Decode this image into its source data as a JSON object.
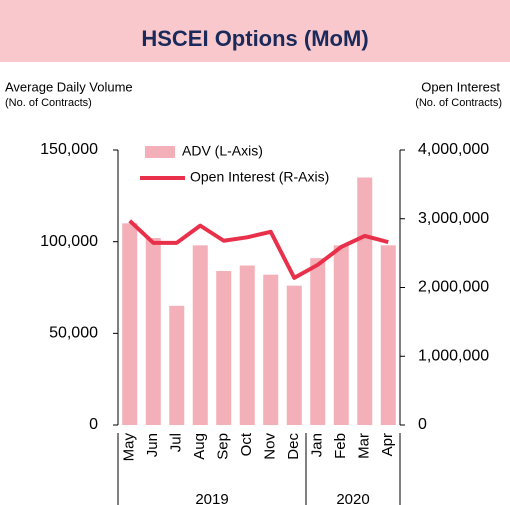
{
  "chart_data": {
    "type": "bar-line",
    "title": "HSCEI Options (MoM)",
    "y_label": "Average Daily Volume",
    "y_sublabel": "(No. of Contracts)",
    "y2_label": "Open Interest",
    "y2_sublabel": "(No. of Contracts)",
    "categories": [
      "May",
      "Jun",
      "Jul",
      "Aug",
      "Sep",
      "Oct",
      "Nov",
      "Dec",
      "Jan",
      "Feb",
      "Mar",
      "Apr"
    ],
    "groups": [
      {
        "label": "2019",
        "count": 8
      },
      {
        "label": "2020",
        "count": 4
      }
    ],
    "series": [
      {
        "name": "ADV (L-Axis)",
        "color": "#f4b0b8",
        "kind": "bar",
        "axis": "y",
        "values": [
          110000,
          102000,
          65000,
          98000,
          84000,
          87000,
          82000,
          76000,
          91000,
          98000,
          135000,
          98000
        ]
      },
      {
        "name": "Open Interest (R-Axis)",
        "color": "#e8304a",
        "kind": "line",
        "axis": "y2",
        "values": [
          2970000,
          2650000,
          2650000,
          2900000,
          2680000,
          2730000,
          2810000,
          2140000,
          2330000,
          2590000,
          2750000,
          2660000
        ]
      }
    ],
    "ylim": [
      0,
      150000
    ],
    "yticks": [
      0,
      {
        "value": 50000,
        "label": "50,000"
      },
      {
        "value": 100000,
        "label": "100,000"
      },
      {
        "value": 150000,
        "label": "150,000"
      }
    ],
    "y2lim": [
      0,
      4000000
    ],
    "y2ticks": [
      0,
      {
        "value": 1000000,
        "label": "1,000,000"
      },
      {
        "value": 2000000,
        "label": "2,000,000"
      },
      {
        "value": 3000000,
        "label": "3,000,000"
      },
      {
        "value": 4000000,
        "label": "4,000,000"
      }
    ],
    "banner_color": "#f8c8cc"
  }
}
